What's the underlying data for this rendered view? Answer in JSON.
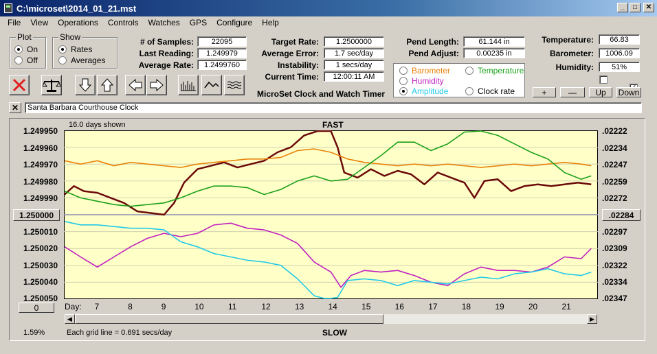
{
  "window": {
    "title": "C:\\microset\\2014_01_21.mst"
  },
  "menu": [
    "File",
    "View",
    "Operations",
    "Controls",
    "Watches",
    "GPS",
    "Configure",
    "Help"
  ],
  "plot_group": {
    "title": "Plot",
    "options": [
      "On",
      "Off"
    ],
    "selected": "On"
  },
  "show_group": {
    "title": "Show",
    "options": [
      "Rates",
      "Averages"
    ],
    "selected": "Rates"
  },
  "stats": {
    "samples_label": "# of Samples:",
    "samples": "22095",
    "last_reading_label": "Last Reading:",
    "last_reading": "1.249979",
    "average_rate_label": "Average Rate:",
    "average_rate": "1.2499760"
  },
  "targets": {
    "target_rate_label": "Target Rate:",
    "target_rate": "1.2500000",
    "average_error_label": "Average Error:",
    "average_error": "1.7 sec/day",
    "instability_label": "Instability:",
    "instability": "1 secs/day",
    "current_time_label": "Current Time:",
    "current_time": "12:00:11 AM"
  },
  "app_name": "MicroSet Clock and Watch Timer",
  "pend": {
    "length_label": "Pend Length:",
    "length": "61.144 in",
    "adjust_label": "Pend Adjust:",
    "adjust": "0.00235 in"
  },
  "series_options": [
    {
      "label": "Barometer",
      "color": "#e8820a",
      "selected": false
    },
    {
      "label": "Temperature",
      "color": "#1aa01a",
      "selected": false
    },
    {
      "label": "Humidity",
      "color": "#c020c0",
      "selected": false
    },
    {
      "label": "Clock rate",
      "color": "#000000",
      "selected": false
    },
    {
      "label": "Amplitude",
      "color": "#20c8e8",
      "selected": true
    }
  ],
  "environment": {
    "temperature_label": "Temperature:",
    "temperature": "66.83",
    "barometer_label": "Barometer:",
    "barometer": "1006.09",
    "humidity_label": "Humidity:",
    "humidity": "51%"
  },
  "checkboxes": [
    {
      "checked": false
    },
    {
      "checked": true
    }
  ],
  "scale_buttons": [
    "+",
    "—",
    "Up",
    "Down"
  ],
  "toolbar_icons": [
    "stop-icon",
    "balance-icon",
    "arrow-down-icon",
    "arrow-up-icon",
    "arrow-left-icon",
    "arrow-right-icon",
    "bars-icon",
    "wave-icon",
    "ripple-icon"
  ],
  "watch_name": "Santa Barbara Courthouse Clock",
  "chart_header": {
    "days_shown": "16.0 days shown",
    "top_label": "FAST",
    "bottom_label": "SLOW"
  },
  "chart_footer": {
    "percent": "1.59%",
    "grid_note": "Each grid line = 0.691 secs/day"
  },
  "left_center_button": "1.250000",
  "right_center_button": ".02284",
  "day_box_value": "0",
  "chart_data": {
    "type": "line",
    "x_label": "Day:",
    "x_ticks": [
      "7",
      "8",
      "9",
      "10",
      "11",
      "12",
      "13",
      "14",
      "15",
      "16",
      "17",
      "18",
      "19",
      "20",
      "21"
    ],
    "xlim": [
      6.0,
      22.0
    ],
    "left_axis_ticks": [
      "1.249950",
      "1.249960",
      "1.249970",
      "1.249980",
      "1.249990",
      "1.250000",
      "1.250010",
      "1.250020",
      "1.250030",
      "1.250040",
      "1.250050"
    ],
    "left_ylim": [
      1.24995,
      1.25005
    ],
    "right_axis_ticks": [
      ".02222",
      ".02234",
      ".02247",
      ".02259",
      ".02272",
      ".02284",
      ".02297",
      ".02309",
      ".02322",
      ".02334",
      ".02347"
    ],
    "grid": true,
    "series": [
      {
        "color": "#6b0a0a",
        "x": [
          6.0,
          6.3,
          6.6,
          7.0,
          7.4,
          7.8,
          8.2,
          8.6,
          9.0,
          9.3,
          9.6,
          10.0,
          10.4,
          10.8,
          11.2,
          11.6,
          12.0,
          12.4,
          12.8,
          13.2,
          13.6,
          14.0,
          14.2,
          14.4,
          14.8,
          15.2,
          15.6,
          16.0,
          16.4,
          16.8,
          17.2,
          17.6,
          18.0,
          18.3,
          18.6,
          19.0,
          19.4,
          19.8,
          20.2,
          20.6,
          21.0,
          21.4,
          21.8
        ],
        "y": [
          1.249988,
          1.249983,
          1.249986,
          1.249987,
          1.24999,
          1.249993,
          1.249998,
          1.249999,
          1.25,
          1.249993,
          1.249981,
          1.249973,
          1.249971,
          1.249969,
          1.249972,
          1.24997,
          1.249968,
          1.249963,
          1.24996,
          1.249953,
          1.24995,
          1.24995,
          1.24996,
          1.249975,
          1.249978,
          1.249973,
          1.249977,
          1.249974,
          1.249976,
          1.249982,
          1.249975,
          1.249978,
          1.249981,
          1.24999,
          1.24998,
          1.249979,
          1.249986,
          1.249983,
          1.249982,
          1.249983,
          1.249982,
          1.249981,
          1.249982
        ]
      },
      {
        "color": "#e8820a",
        "x": [
          6.0,
          6.5,
          7.0,
          7.5,
          8.0,
          8.5,
          9.0,
          9.5,
          10.0,
          10.5,
          11.0,
          11.5,
          12.0,
          12.5,
          13.0,
          13.5,
          14.0,
          14.5,
          15.0,
          15.5,
          16.0,
          16.5,
          17.0,
          17.5,
          18.0,
          18.5,
          19.0,
          19.5,
          20.0,
          20.5,
          21.0,
          21.5,
          21.8
        ],
        "y": [
          1.249968,
          1.24997,
          1.249968,
          1.249971,
          1.249969,
          1.24997,
          1.249971,
          1.249972,
          1.24997,
          1.249969,
          1.249968,
          1.249967,
          1.249967,
          1.249966,
          1.249962,
          1.249961,
          1.249963,
          1.249967,
          1.249969,
          1.24997,
          1.249971,
          1.24997,
          1.249971,
          1.24997,
          1.249971,
          1.249972,
          1.249971,
          1.24997,
          1.249971,
          1.24997,
          1.249969,
          1.24997,
          1.249971
        ]
      },
      {
        "color": "#1aa01a",
        "x": [
          6.0,
          6.5,
          7.0,
          7.5,
          8.0,
          8.5,
          9.0,
          9.5,
          10.0,
          10.5,
          11.0,
          11.5,
          12.0,
          12.5,
          13.0,
          13.5,
          14.0,
          14.5,
          15.0,
          15.5,
          16.0,
          16.5,
          17.0,
          17.5,
          18.0,
          18.5,
          19.0,
          19.5,
          20.0,
          20.5,
          21.0,
          21.5,
          21.8
        ],
        "y": [
          1.249986,
          1.24999,
          1.249992,
          1.249994,
          1.249995,
          1.249994,
          1.249993,
          1.24999,
          1.249986,
          1.249983,
          1.249983,
          1.249984,
          1.249988,
          1.249985,
          1.24998,
          1.249977,
          1.24998,
          1.249979,
          1.249972,
          1.249965,
          1.249957,
          1.249957,
          1.249962,
          1.249958,
          1.249951,
          1.24995,
          1.249953,
          1.249958,
          1.249963,
          1.249967,
          1.249975,
          1.249979,
          1.249977
        ]
      },
      {
        "color": "#c020c0",
        "x": [
          6.0,
          6.5,
          7.0,
          7.5,
          8.0,
          8.5,
          9.0,
          9.5,
          10.0,
          10.5,
          11.0,
          11.5,
          12.0,
          12.5,
          13.0,
          13.5,
          14.0,
          14.3,
          14.6,
          15.0,
          15.5,
          16.0,
          16.5,
          17.0,
          17.5,
          18.0,
          18.5,
          19.0,
          19.5,
          20.0,
          20.5,
          21.0,
          21.5,
          21.8
        ],
        "y": [
          1.250019,
          1.250025,
          1.250031,
          1.250025,
          1.250019,
          1.250014,
          1.250011,
          1.250013,
          1.250011,
          1.250006,
          1.250005,
          1.250008,
          1.250009,
          1.250012,
          1.250017,
          1.250028,
          1.250034,
          1.250043,
          1.250036,
          1.250033,
          1.250034,
          1.250033,
          1.250036,
          1.25004,
          1.250042,
          1.250035,
          1.250031,
          1.250033,
          1.250033,
          1.250034,
          1.250031,
          1.250025,
          1.250026,
          1.25002
        ]
      },
      {
        "color": "#20c8e8",
        "x": [
          6.0,
          6.5,
          7.0,
          7.5,
          8.0,
          8.5,
          9.0,
          9.5,
          10.0,
          10.5,
          11.0,
          11.5,
          12.0,
          12.5,
          13.0,
          13.5,
          13.8,
          14.0,
          14.2,
          14.5,
          15.0,
          15.5,
          16.0,
          16.5,
          17.0,
          17.5,
          18.0,
          18.5,
          19.0,
          19.5,
          20.0,
          20.5,
          21.0,
          21.5,
          21.8
        ],
        "y": [
          1.250004,
          1.250006,
          1.250006,
          1.250007,
          1.250008,
          1.250008,
          1.250009,
          1.250016,
          1.250019,
          1.250023,
          1.250025,
          1.250027,
          1.250028,
          1.25003,
          1.250038,
          1.250048,
          1.25005,
          1.25005,
          1.250049,
          1.250039,
          1.250038,
          1.250039,
          1.250042,
          1.250039,
          1.25004,
          1.250041,
          1.250039,
          1.250037,
          1.250038,
          1.250035,
          1.250034,
          1.250032,
          1.250035,
          1.250036,
          1.250034
        ]
      }
    ]
  }
}
